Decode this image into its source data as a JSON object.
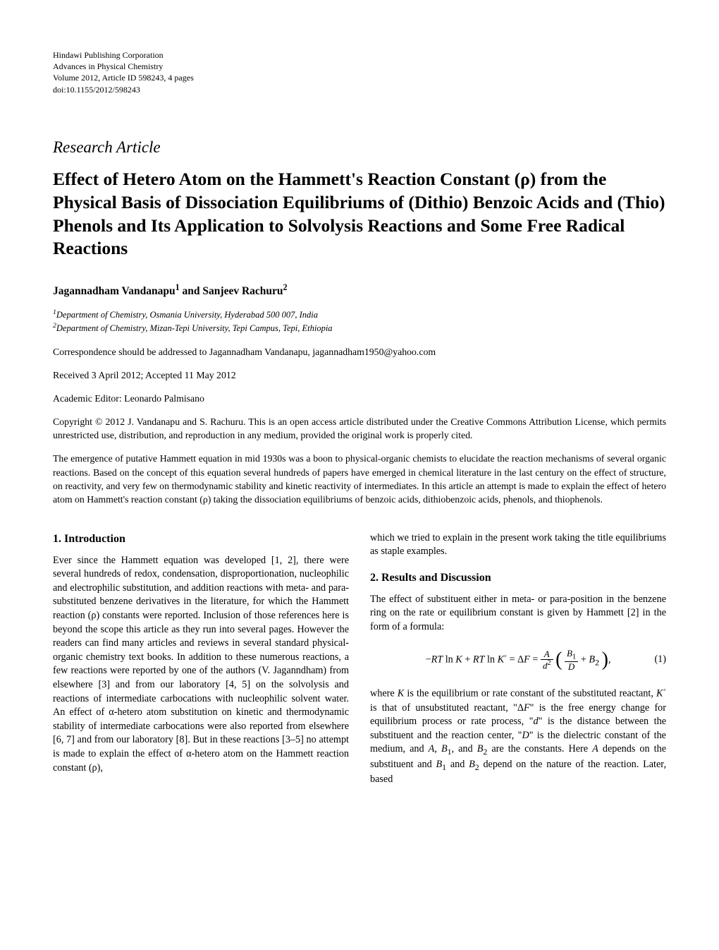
{
  "pub_info": {
    "line1": "Hindawi Publishing Corporation",
    "line2": "Advances in Physical Chemistry",
    "line3": "Volume 2012, Article ID 598243, 4 pages",
    "line4": "doi:10.1155/2012/598243"
  },
  "article_type": "Research Article",
  "title": "Effect of Hetero Atom on the Hammett's Reaction Constant (ρ) from the Physical Basis of Dissociation Equilibriums of (Dithio) Benzoic Acids and (Thio) Phenols and Its Application to Solvolysis Reactions and Some Free Radical Reactions",
  "authors": {
    "a1_name": "Jagannadham Vandanapu",
    "a1_sup": "1",
    "and": " and ",
    "a2_name": "Sanjeev Rachuru",
    "a2_sup": "2"
  },
  "affiliations": {
    "aff1_sup": "1",
    "aff1": "Department of Chemistry, Osmania University, Hyderabad 500 007, India",
    "aff2_sup": "2",
    "aff2": "Department of Chemistry, Mizan-Tepi University, Tepi Campus, Tepi, Ethiopia"
  },
  "correspondence": "Correspondence should be addressed to Jagannadham Vandanapu, jagannadham1950@yahoo.com",
  "dates": "Received 3 April 2012; Accepted 11 May 2012",
  "editor": "Academic Editor: Leonardo Palmisano",
  "copyright": "Copyright © 2012 J. Vandanapu and S. Rachuru. This is an open access article distributed under the Creative Commons Attribution License, which permits unrestricted use, distribution, and reproduction in any medium, provided the original work is properly cited.",
  "abstract": "The emergence of putative Hammett equation in mid 1930s was a boon to physical-organic chemists to elucidate the reaction mechanisms of several organic reactions. Based on the concept of this equation several hundreds of papers have emerged in chemical literature in the last century on the effect of structure, on reactivity, and very few on thermodynamic stability and kinetic reactivity of intermediates. In this article an attempt is made to explain the effect of hetero atom on Hammett's reaction constant (ρ) taking the dissociation equilibriums of benzoic acids, dithiobenzoic acids, phenols, and thiophenols.",
  "sections": {
    "intro_heading": "1. Introduction",
    "intro_body": "Ever since the Hammett equation was developed [1, 2], there were several hundreds of redox, condensation, disproportionation, nucleophilic and electrophilic substitution, and addition reactions with meta- and para-substituted benzene derivatives in the literature, for which the Hammett reaction (ρ) constants were reported. Inclusion of those references here is beyond the scope this article as they run into several pages. However the readers can find many articles and reviews in several standard physical-organic chemistry text books. In addition to these numerous reactions, a few reactions were reported by one of the authors (V. Jaganndham) from elsewhere [3] and from our laboratory [4, 5] on the solvolysis and reactions of intermediate carbocations with nucleophilic solvent water. An effect of α-hetero atom substitution on kinetic and thermodynamic stability of intermediate carbocations were also reported from elsewhere [6, 7] and from our laboratory [8]. But in these reactions [3–5] no attempt is made to explain the effect of α-hetero atom on the Hammett reaction constant (ρ),",
    "intro_cont": "which we tried to explain in the present work taking the title equilibriums as staple examples.",
    "results_heading": "2. Results and Discussion",
    "results_p1": "The effect of substituent either in meta- or para-position in the benzene ring on the rate or equilibrium constant is given by Hammett [2] in the form of a formula:",
    "equation": {
      "label": "(1)",
      "lhs_a": "−",
      "lhs_RT": "RT",
      "lhs_ln": " ln ",
      "lhs_K": "K",
      "plus1": " + ",
      "lhs_RT2": "RT",
      "lhs_ln2": " ln ",
      "lhs_K2": "K",
      "lhs_K2_sup": "◦",
      "eq1": " = Δ",
      "F": "F",
      "eq2": " = ",
      "frac1_num": "A",
      "frac1_den_d": "d",
      "frac1_den_exp": "2",
      "frac2_num_B": "B",
      "frac2_num_1": "1",
      "frac2_den": "D",
      "plus2": " + ",
      "B": "B",
      "B_sub": "2",
      "comma": ","
    },
    "where_text": "where K is the equilibrium or rate constant of the substituted reactant, K◦ is that of unsubstituted reactant, \"ΔF\" is the free energy change for equilibrium process or rate process, \"d\" is the distance between the substituent and the reaction center, \"D\" is the dielectric constant of the medium, and A, B₁, and B₂ are the constants. Here A depends on the substituent and B₁ and B₂ depend on the nature of the reaction. Later, based"
  }
}
